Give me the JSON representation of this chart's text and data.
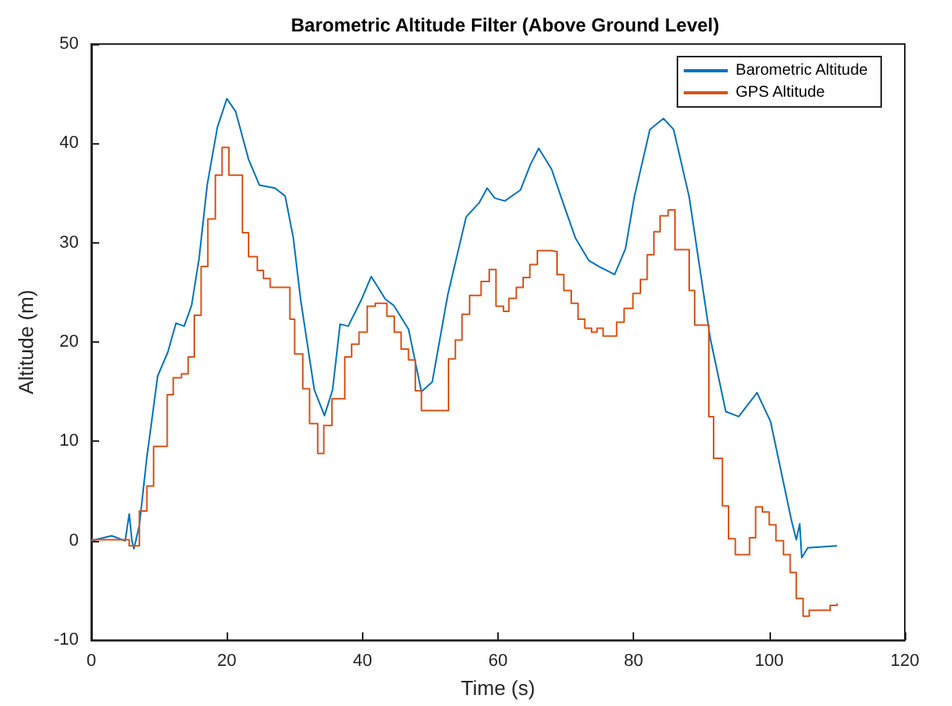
{
  "chart_data": {
    "type": "line",
    "title": "Barometric Altitude Filter (Above Ground Level)",
    "xlabel": "Time (s)",
    "ylabel": "Altitude (m)",
    "xlim": [
      0,
      120
    ],
    "xticks": [
      0,
      20,
      40,
      60,
      80,
      100,
      120
    ],
    "ylim": [
      -10,
      50
    ],
    "yticks": [
      -10,
      0,
      10,
      20,
      30,
      40,
      50
    ],
    "grid": false,
    "legend": "top right",
    "marker": "none",
    "line_style": "solid",
    "series": [
      {
        "name": "Barometric Altitude",
        "color": "#0072bd",
        "x": [
          0,
          3,
          5,
          5.6,
          6,
          6.3,
          7.1,
          8.2,
          9.8,
          11.3,
          12.5,
          13.7,
          14.8,
          15.9,
          17.1,
          18.6,
          20,
          21.3,
          23.2,
          24.8,
          27.1,
          28.6,
          29.8,
          30.9,
          32.9,
          34.4,
          35.6,
          36.7,
          37.9,
          39.8,
          41.3,
          43.4,
          44.6,
          46.8,
          48.7,
          50.3,
          52.6,
          55.3,
          57.2,
          58.4,
          59.5,
          61,
          63.3,
          64.8,
          66,
          67,
          67.9,
          69.5,
          71.4,
          73.4,
          74.9,
          77.2,
          78.8,
          80.1,
          82.4,
          84.4,
          85.9,
          88.2,
          91.3,
          93.6,
          95.5,
          98.2,
          100.2,
          103.3,
          104,
          104.5,
          104.8,
          105.7,
          110
        ],
        "values": [
          0,
          0.5,
          0,
          2.7,
          0,
          -0.8,
          1.6,
          8.4,
          16.6,
          19,
          21.9,
          21.6,
          23.7,
          28.4,
          35.8,
          41.6,
          44.5,
          43.2,
          38.4,
          35.8,
          35.5,
          34.7,
          30.5,
          24.2,
          15.2,
          12.6,
          15.2,
          21.8,
          21.6,
          24.2,
          26.6,
          24.3,
          23.7,
          21.3,
          15,
          16,
          24.8,
          32.6,
          34,
          35.5,
          34.5,
          34.2,
          35.3,
          37.9,
          39.5,
          38.4,
          37.4,
          34.2,
          30.5,
          28.2,
          27.6,
          26.8,
          29.4,
          34.6,
          41.4,
          42.5,
          41.4,
          34.6,
          20.4,
          13,
          12.5,
          14.9,
          12,
          2,
          0.1,
          1.7,
          -1.7,
          -0.7,
          -0.5
        ]
      },
      {
        "name": "GPS Altitude",
        "color": "#d95319",
        "type": "step",
        "x": [
          0,
          5.6,
          7.1,
          8.2,
          9.2,
          11.2,
          12.1,
          13.3,
          14.3,
          15.2,
          16.2,
          17.2,
          18.3,
          19.3,
          20.3,
          22.3,
          23.2,
          24.5,
          25.4,
          26.4,
          29.3,
          30,
          31.2,
          32.2,
          33.4,
          34.3,
          35.5,
          37.4,
          38.4,
          39.5,
          40.7,
          41.9,
          43.6,
          44.7,
          45.7,
          46.8,
          47.8,
          48.7,
          52.7,
          53.7,
          54.7,
          55.8,
          57.5,
          58.7,
          59.7,
          60.8,
          61.6,
          62.7,
          63.7,
          64.7,
          65.8,
          67.8,
          68.7,
          69.7,
          70.8,
          71.8,
          72.8,
          73.8,
          74.6,
          75.5,
          77.5,
          78.6,
          79.9,
          81,
          82,
          83,
          83.9,
          85.1,
          86.1,
          88.2,
          89,
          91.1,
          91.8,
          93.1,
          94,
          95,
          97.1,
          98,
          99,
          100,
          101,
          102.1,
          103.1,
          104,
          105,
          105.9,
          109,
          110
        ],
        "values": [
          0.1,
          -0.5,
          3,
          5.5,
          9.5,
          14.7,
          16.4,
          16.8,
          18.5,
          22.7,
          27.6,
          32.4,
          36.8,
          39.6,
          36.8,
          31,
          28.6,
          27.2,
          26.4,
          25.5,
          22.3,
          18.8,
          15.3,
          11.8,
          8.8,
          11.6,
          14.3,
          18.5,
          19.8,
          21,
          23.6,
          23.9,
          22.6,
          21,
          19.3,
          18.2,
          15.1,
          13.1,
          18.3,
          20.2,
          22.8,
          24.7,
          26.1,
          27.3,
          23.6,
          23.1,
          24.4,
          25.5,
          26.5,
          27.8,
          29.2,
          29.1,
          26.8,
          25.2,
          23.9,
          22.3,
          21.4,
          21,
          21.4,
          20.6,
          22,
          23.4,
          24.9,
          26.3,
          28.8,
          31.1,
          32.7,
          33.3,
          29.3,
          25.2,
          21.7,
          12.5,
          8.3,
          3.5,
          0.2,
          -1.4,
          0.3,
          3.4,
          2.9,
          1.6,
          0,
          -1.4,
          -3.2,
          -5.8,
          -7.6,
          -7,
          -6.5,
          -6.3
        ]
      }
    ]
  }
}
